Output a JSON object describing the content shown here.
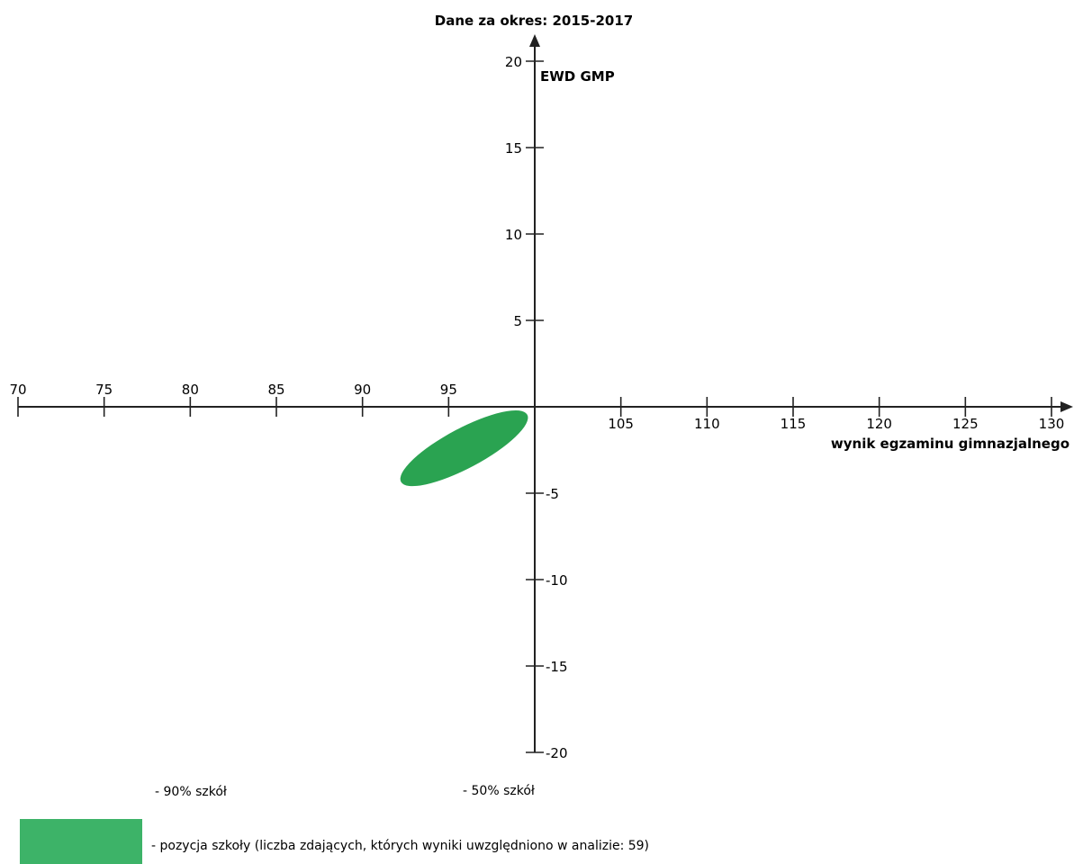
{
  "chart_data": {
    "type": "scatter",
    "title": "Dane za okres: 2015-2017",
    "xlabel": "wynik egzaminu gimnazjalnego",
    "ylabel": "EWD GMP",
    "xlim": [
      70,
      130
    ],
    "ylim": [
      -20,
      20
    ],
    "x_ticks": [
      70,
      75,
      80,
      85,
      90,
      95,
      105,
      110,
      115,
      120,
      125,
      130
    ],
    "y_ticks": [
      20,
      15,
      10,
      5,
      -5,
      -10,
      -15,
      -20
    ],
    "series": [
      {
        "name": "pozycja szkoły",
        "shape": "ellipse",
        "center": [
          95.9,
          -2.4
        ],
        "ellipse_extent_x": [
          91.7,
          100.0
        ],
        "ellipse_extent_y": [
          -4.8,
          0.0
        ],
        "color": "#2aa351"
      }
    ],
    "grid": false
  },
  "legend": {
    "item_90": "- 90% szkół",
    "item_50": "- 50% szkół",
    "item_school": "- pozycja szkoły (liczba zdających, których wyniki uwzględniono w analizie: 59)",
    "school_swatch_color": "#3db368"
  }
}
